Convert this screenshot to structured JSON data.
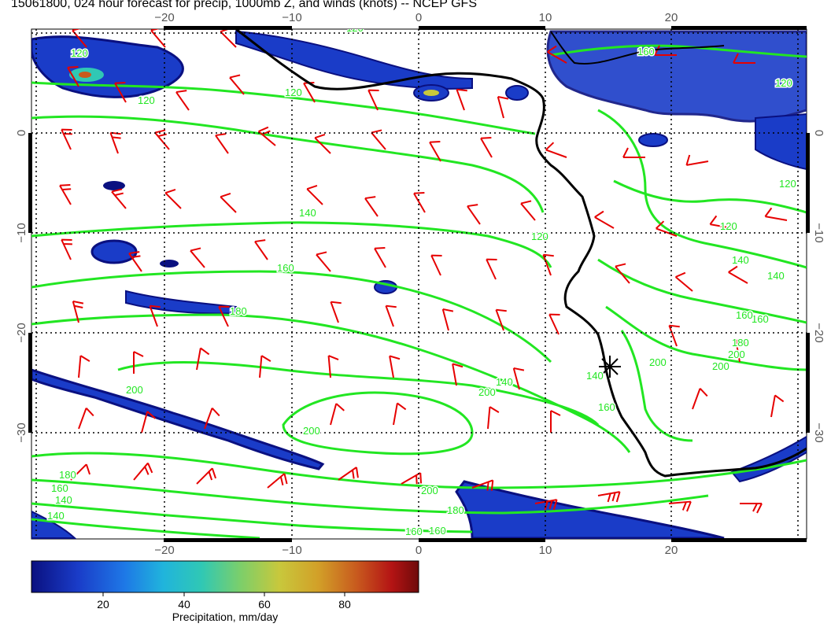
{
  "title": "15061800, 024 hour forecast for precip, 1000mb Z, and winds (knots) -- NCEP GFS",
  "lon_ticks_top": [
    "−20",
    "−10",
    "0",
    "10",
    "20"
  ],
  "lon_ticks_bottom": [
    "−20",
    "−10",
    "0",
    "10",
    "20"
  ],
  "lat_ticks_left": [
    "0",
    "−10",
    "−20",
    "−30"
  ],
  "lat_ticks_right": [
    "0",
    "−10",
    "−20",
    "−30"
  ],
  "contour_labels": [
    "120",
    "120",
    "120",
    "140",
    "160",
    "180",
    "200",
    "200",
    "200",
    "200",
    "180",
    "160",
    "140",
    "160",
    "140",
    "120",
    "160",
    "140",
    "120",
    "200",
    "180",
    "160",
    "140",
    "120",
    "120",
    "140",
    "140",
    "160",
    "180",
    "200",
    "200",
    "160",
    "120",
    "160"
  ],
  "colorbar": {
    "title": "Precipitation, mm/day",
    "ticks": [
      "20",
      "40",
      "60",
      "80"
    ],
    "colors": [
      "#0a1080",
      "#1a3cc8",
      "#1e78e6",
      "#20b4dc",
      "#30c8b4",
      "#7ccf6a",
      "#c8c83c",
      "#d2a028",
      "#c85a1e",
      "#b41414",
      "#6e0a0a"
    ]
  },
  "colors": {
    "contour": "#22e622",
    "wind_barb": "#e60000",
    "coastline": "#000000",
    "grid": "#000000"
  },
  "icons": [
    "star-marker-icon"
  ]
}
